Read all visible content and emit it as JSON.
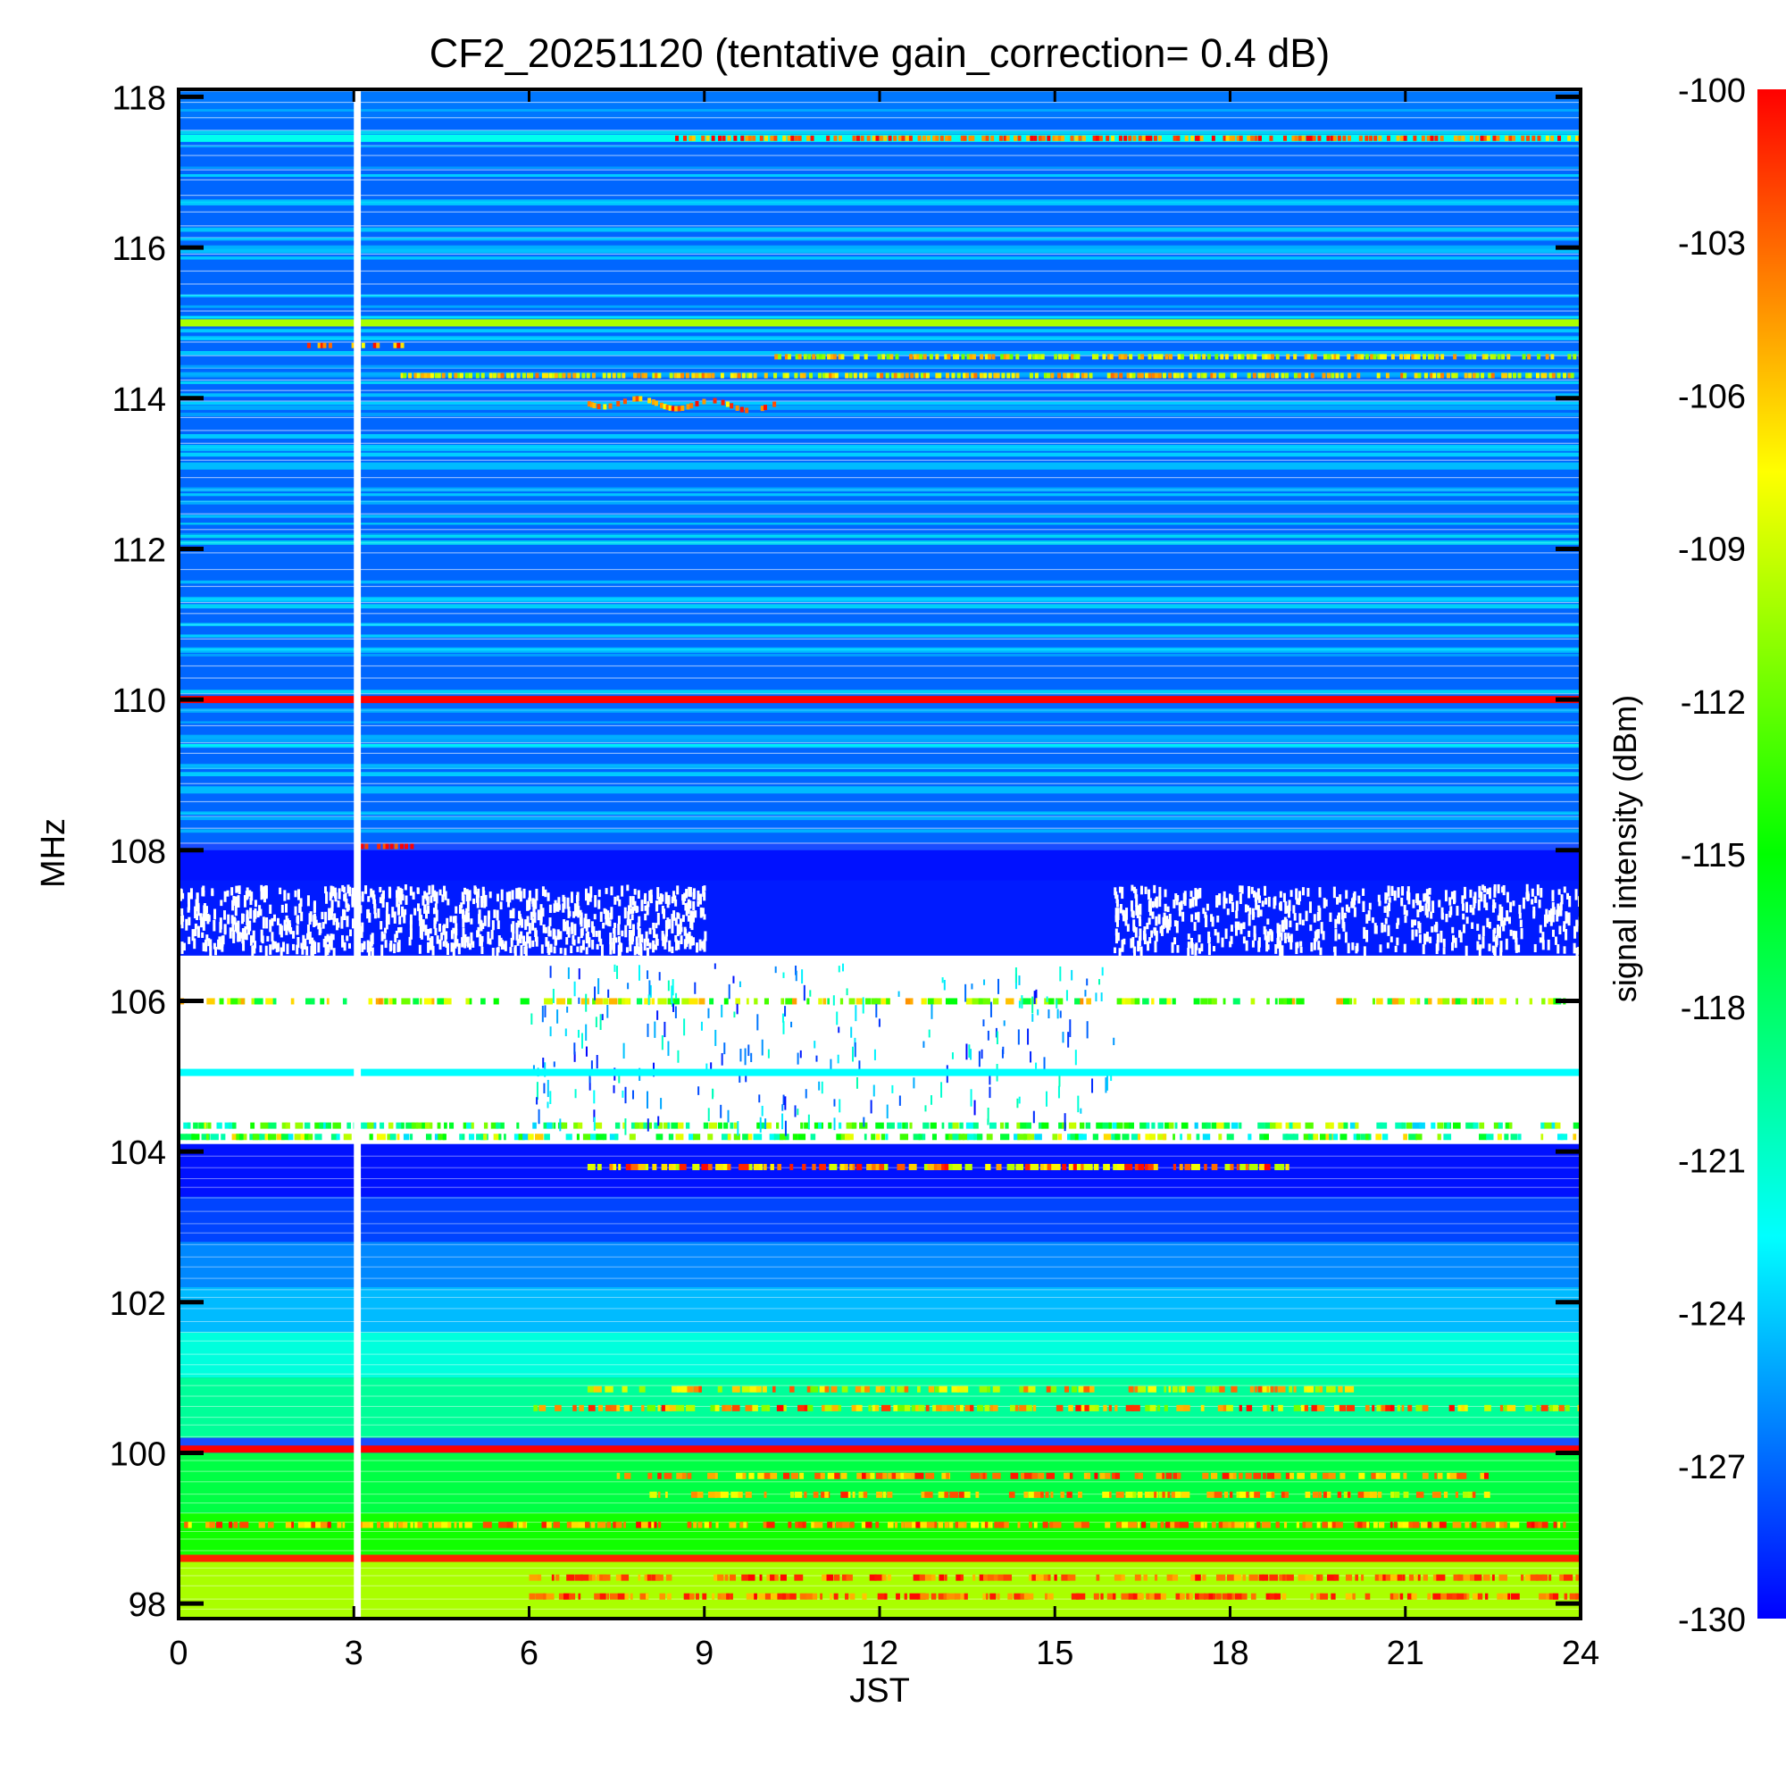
{
  "chart_data": {
    "type": "heatmap",
    "title": "CF2_20251120 (tentative gain_correction=  0.4 dB)",
    "xlabel": "JST",
    "ylabel": "MHz",
    "xlim": [
      0,
      24
    ],
    "ylim": [
      97.8,
      118.1
    ],
    "x_ticks": [
      "0",
      "3",
      "6",
      "9",
      "12",
      "15",
      "18",
      "21",
      "24"
    ],
    "x_tick_values": [
      0,
      3,
      6,
      9,
      12,
      15,
      18,
      21,
      24
    ],
    "y_ticks": [
      "98",
      "100",
      "102",
      "104",
      "106",
      "108",
      "110",
      "112",
      "114",
      "116",
      "118"
    ],
    "y_tick_values": [
      98,
      100,
      102,
      104,
      106,
      108,
      110,
      112,
      114,
      116,
      118
    ],
    "colorbar": {
      "label": "signal intensity (dBm)",
      "range": [
        -130,
        -100
      ],
      "ticks": [
        "-100",
        "-103",
        "-106",
        "-109",
        "-112",
        "-115",
        "-118",
        "-121",
        "-124",
        "-127",
        "-130"
      ],
      "tick_values": [
        -100,
        -103,
        -106,
        -109,
        -112,
        -115,
        -118,
        -121,
        -124,
        -127,
        -130
      ],
      "colormap": [
        "#0000ff",
        "#0080ff",
        "#00ffff",
        "#00ff80",
        "#00ff00",
        "#80ff00",
        "#ffff00",
        "#ff8000",
        "#ff0000"
      ]
    },
    "data_gap": {
      "x": 3.0,
      "width_hours": 0.12
    },
    "background_bands": [
      {
        "from": 117.7,
        "to": 118.1,
        "dbm": -126.5
      },
      {
        "from": 112.0,
        "to": 117.7,
        "dbm": -127.0
      },
      {
        "from": 108.1,
        "to": 112.0,
        "dbm": -127.0
      },
      {
        "from": 107.6,
        "to": 108.0,
        "dbm": -129.5
      },
      {
        "from": 106.6,
        "to": 107.6,
        "dbm": -129.2
      },
      {
        "from": 103.4,
        "to": 104.1,
        "dbm": -129.5
      },
      {
        "from": 102.8,
        "to": 103.4,
        "dbm": -128.0
      },
      {
        "from": 102.2,
        "to": 102.8,
        "dbm": -126.0
      },
      {
        "from": 101.6,
        "to": 102.2,
        "dbm": -124.5
      },
      {
        "from": 101.0,
        "to": 101.6,
        "dbm": -121.5
      },
      {
        "from": 100.2,
        "to": 101.0,
        "dbm": -119.5
      },
      {
        "from": 99.2,
        "to": 100.0,
        "dbm": -117.0
      },
      {
        "from": 98.6,
        "to": 99.2,
        "dbm": -114.5
      },
      {
        "from": 97.8,
        "to": 98.6,
        "dbm": -110.0
      }
    ],
    "saturated_gap_bands": [
      {
        "from": 104.1,
        "to": 106.6
      }
    ],
    "constant_lines": [
      {
        "freq": 117.45,
        "dbm": -122,
        "x_from": 0,
        "x_to": 24
      },
      {
        "freq": 115.0,
        "dbm": -110,
        "x_from": 0,
        "x_to": 24
      },
      {
        "freq": 113.1,
        "dbm": -124.5,
        "x_from": 0,
        "x_to": 24
      },
      {
        "freq": 110.0,
        "dbm": -100,
        "x_from": 0,
        "x_to": 24
      },
      {
        "freq": 108.8,
        "dbm": -124.5,
        "x_from": 0,
        "x_to": 24
      },
      {
        "freq": 105.05,
        "dbm": -122.5,
        "x_from": 0,
        "x_to": 24
      },
      {
        "freq": 100.05,
        "dbm": -100,
        "x_from": 0,
        "x_to": 24
      },
      {
        "freq": 98.6,
        "dbm": -101,
        "x_from": 0,
        "x_to": 24
      }
    ],
    "drifting_features": [
      {
        "name": "117.45 MHz brightening",
        "freq": 117.45,
        "x_from": 8.5,
        "x_to": 24,
        "dbm": -103
      },
      {
        "name": "114.3 MHz intermittent",
        "freq": 114.3,
        "x_from": 3.8,
        "x_to": 24,
        "dbm": -107
      },
      {
        "name": "114.55 MHz intermittent",
        "freq": 114.55,
        "x_from": 10.2,
        "x_to": 24,
        "dbm": -108
      },
      {
        "name": "114.7 MHz early",
        "freq": 114.7,
        "x_from": 2.2,
        "x_to": 3.8,
        "dbm": -104
      },
      {
        "name": "113.95 MHz burst",
        "freq": 113.95,
        "x_from": 7.0,
        "x_to": 10.2,
        "dbm": -104
      },
      {
        "name": "108.05 MHz short",
        "freq": 108.05,
        "x_from": 3.0,
        "x_to": 4.0,
        "dbm": -100
      }
    ],
    "speckled_rows": [
      {
        "freq": 106.0,
        "x_from": 0,
        "x_to": 24,
        "dbm_min": -118,
        "dbm_max": -104
      },
      {
        "freq": 104.35,
        "x_from": 0,
        "x_to": 24,
        "dbm_min": -124,
        "dbm_max": -108
      },
      {
        "freq": 104.2,
        "x_from": 0,
        "x_to": 24,
        "dbm_min": -124,
        "dbm_max": -106
      },
      {
        "freq": 103.8,
        "x_from": 7.0,
        "x_to": 19.0,
        "dbm_min": -110,
        "dbm_max": -100
      },
      {
        "freq": 100.6,
        "x_from": 6.0,
        "x_to": 24,
        "dbm_min": -112,
        "dbm_max": -100
      },
      {
        "freq": 100.85,
        "x_from": 7.0,
        "x_to": 20.0,
        "dbm_min": -112,
        "dbm_max": -102
      },
      {
        "freq": 99.7,
        "x_from": 7.5,
        "x_to": 22.5,
        "dbm_min": -108,
        "dbm_max": -100
      },
      {
        "freq": 99.45,
        "x_from": 8.0,
        "x_to": 22.5,
        "dbm_min": -110,
        "dbm_max": -101
      },
      {
        "freq": 99.05,
        "x_from": 0,
        "x_to": 24,
        "dbm_min": -108,
        "dbm_max": -100
      },
      {
        "freq": 98.35,
        "x_from": 6.0,
        "x_to": 24,
        "dbm_min": -106,
        "dbm_max": -100
      },
      {
        "freq": 98.1,
        "x_from": 6.0,
        "x_to": 24,
        "dbm_min": -106,
        "dbm_max": -100
      }
    ]
  }
}
